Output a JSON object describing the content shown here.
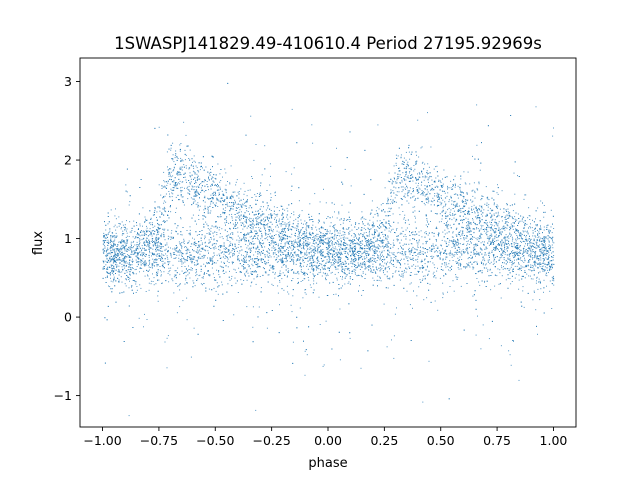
{
  "chart_data": {
    "type": "scatter",
    "title": "1SWASPJ141829.49-410610.4 Period 27195.92969s",
    "xlabel": "phase",
    "ylabel": "flux",
    "xlim": [
      -1.1,
      1.1
    ],
    "ylim": [
      -1.4,
      3.3
    ],
    "xticks": [
      "−1.00",
      "−0.75",
      "−0.50",
      "−0.25",
      "0.00",
      "0.25",
      "0.50",
      "0.75",
      "1.00"
    ],
    "xtick_values": [
      -1.0,
      -0.75,
      -0.5,
      -0.25,
      0.0,
      0.25,
      0.5,
      0.75,
      1.0
    ],
    "yticks": [
      "−1",
      "0",
      "1",
      "2",
      "3"
    ],
    "ytick_values": [
      -1,
      0,
      1,
      2,
      3
    ],
    "grid": false,
    "marker_color": "#1f77b4",
    "series": [
      {
        "description_points": [
          {
            "phase": -1.0,
            "flux": 0.8
          },
          {
            "phase": -0.85,
            "flux": 0.85
          },
          {
            "phase": -0.75,
            "flux": 1.1
          },
          {
            "phase": -0.7,
            "flux": 1.8
          },
          {
            "phase": -0.65,
            "flux": 1.85
          },
          {
            "phase": -0.5,
            "flux": 1.5
          },
          {
            "phase": -0.25,
            "flux": 1.15
          },
          {
            "phase": 0.0,
            "flux": 0.85
          },
          {
            "phase": 0.15,
            "flux": 0.85
          },
          {
            "phase": 0.25,
            "flux": 1.1
          },
          {
            "phase": 0.3,
            "flux": 1.8
          },
          {
            "phase": 0.35,
            "flux": 1.85
          },
          {
            "phase": 0.5,
            "flux": 1.5
          },
          {
            "phase": 0.75,
            "flux": 1.15
          },
          {
            "phase": 1.0,
            "flux": 0.85
          }
        ],
        "baseline_flux": 0.8
      }
    ]
  }
}
